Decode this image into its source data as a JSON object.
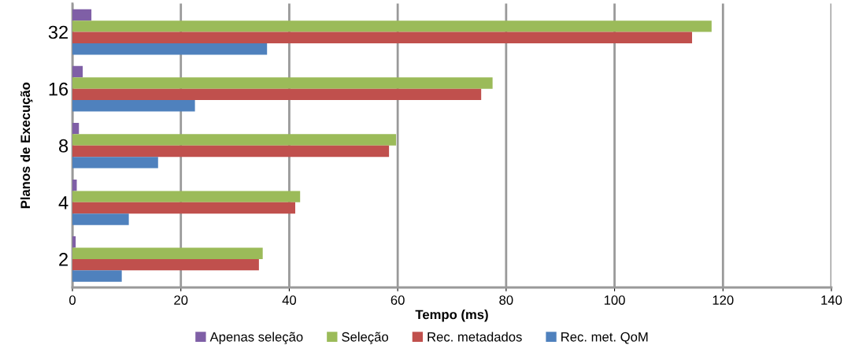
{
  "chart_data": {
    "type": "bar",
    "orientation": "horizontal",
    "xlabel": "Tempo (ms)",
    "ylabel": "Planos de Execução",
    "categories": [
      "32",
      "16",
      "8",
      "4",
      "2"
    ],
    "series": [
      {
        "name": "Apenas seleção",
        "color": "#7f5fa6",
        "values": [
          3.5,
          1.9,
          1.2,
          0.8,
          0.6
        ]
      },
      {
        "name": "Seleção",
        "color": "#9bbb59",
        "values": [
          117.9,
          77.5,
          59.7,
          42.0,
          35.1
        ]
      },
      {
        "name": "Rec. metadados",
        "color": "#c0504d",
        "values": [
          114.3,
          75.4,
          58.4,
          41.1,
          34.4
        ]
      },
      {
        "name": "Rec. met. QoM",
        "color": "#4f81bd",
        "values": [
          35.9,
          22.6,
          15.8,
          10.4,
          9.1
        ]
      }
    ],
    "xlim": [
      0,
      140
    ],
    "xticks": [
      0,
      20,
      40,
      60,
      80,
      100,
      120,
      140
    ],
    "grid": "x",
    "legend": "bottom"
  }
}
